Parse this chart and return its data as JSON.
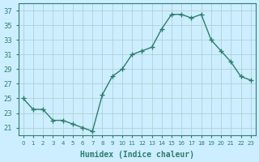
{
  "x": [
    0,
    1,
    2,
    3,
    4,
    5,
    6,
    7,
    8,
    9,
    10,
    11,
    12,
    13,
    14,
    15,
    16,
    17,
    18,
    19,
    20,
    21,
    22,
    23
  ],
  "y": [
    25,
    23.5,
    23.5,
    22,
    22,
    21.5,
    21,
    20.5,
    25.5,
    28,
    29,
    31,
    31.5,
    32,
    34.5,
    36.5,
    36.5,
    36,
    36.5,
    33,
    31.5,
    30,
    28,
    27.5
  ],
  "line_color": "#2e7d6e",
  "marker": "+",
  "bg_color": "#cceeff",
  "grid_color": "#aacccc",
  "xlabel": "Humidex (Indice chaleur)",
  "yticks": [
    21,
    23,
    25,
    27,
    29,
    31,
    33,
    35,
    37
  ],
  "ylim": [
    20,
    38
  ],
  "xlim": [
    -0.5,
    23.5
  ],
  "tick_color": "#2e7d6e",
  "label_color": "#2e7d6e"
}
